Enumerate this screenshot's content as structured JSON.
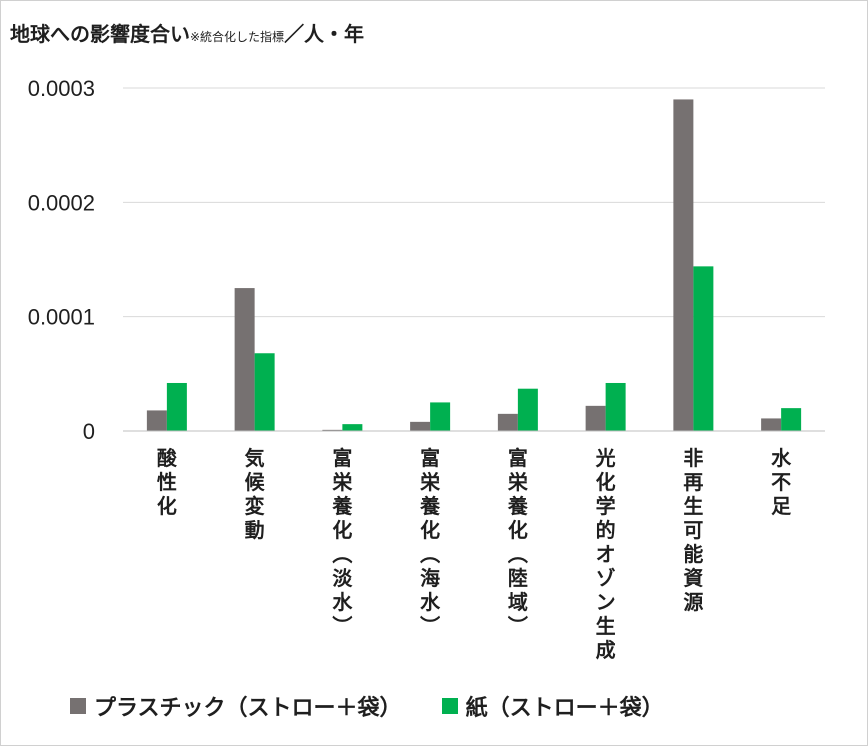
{
  "chart_data": {
    "type": "bar",
    "title": "地球への影響度合い",
    "title_note": "※統合化した指標",
    "title_unit": "／人・年",
    "categories": [
      "酸性化",
      "気候変動",
      "富栄養化（淡水）",
      "富栄養化（海水）",
      "富栄養化（陸域）",
      "光化学的オゾン生成",
      "非再生可能資源",
      "水不足"
    ],
    "series": [
      {
        "name": "プラスチック（ストロー＋袋）",
        "color": "#767171",
        "values": [
          1.8e-05,
          0.000125,
          1e-06,
          8e-06,
          1.5e-05,
          2.2e-05,
          0.00029,
          1.1e-05
        ]
      },
      {
        "name": "紙（ストロー＋袋）",
        "color": "#00b050",
        "values": [
          4.2e-05,
          6.8e-05,
          6e-06,
          2.5e-05,
          3.7e-05,
          4.2e-05,
          0.000144,
          2e-05
        ]
      }
    ],
    "ylim": [
      0,
      0.0003
    ],
    "yticks": [
      0,
      0.0001,
      0.0002,
      0.0003
    ],
    "ytick_labels": [
      "0",
      "0.0001",
      "0.0002",
      "0.0003"
    ],
    "gridlines": true,
    "legend_position": "bottom",
    "xlabel": "",
    "ylabel": ""
  }
}
